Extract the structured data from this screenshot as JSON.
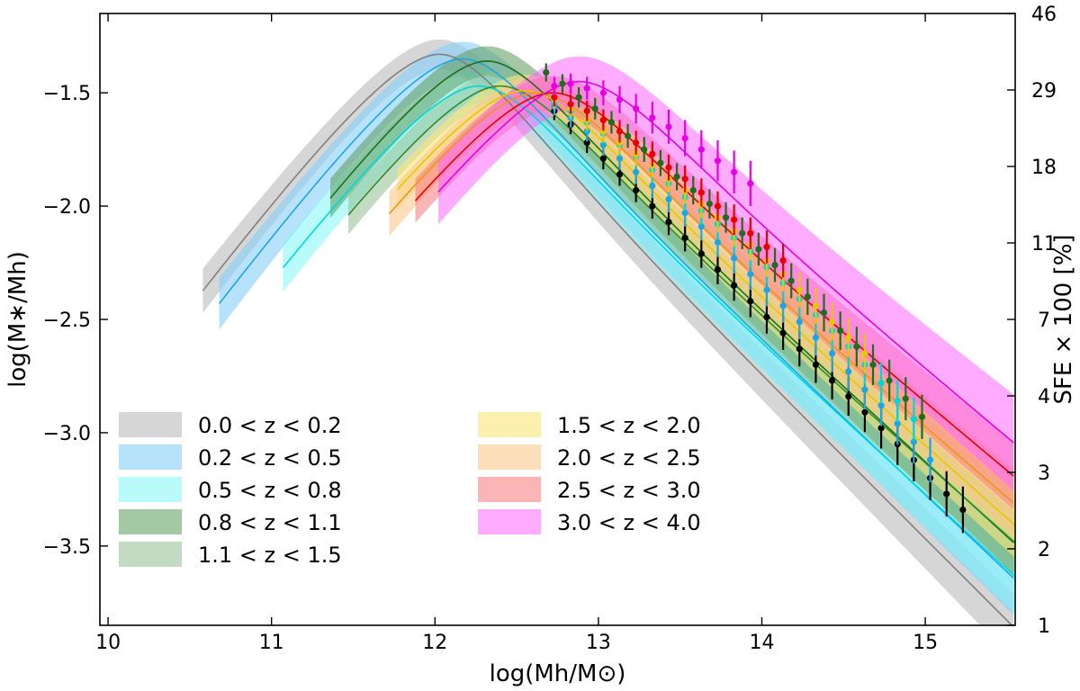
{
  "chart_data": {
    "type": "line",
    "xlabel": "log(Mh/M⊙)",
    "ylabel": "log(M∗/Mh)",
    "y2label": "SFE × 100 [%]",
    "xlim": [
      9.95,
      15.55
    ],
    "ylim": [
      -3.85,
      -1.15
    ],
    "x_ticks": [
      10,
      11,
      12,
      13,
      14,
      15
    ],
    "y_ticks": [
      -3.5,
      -3.0,
      -2.5,
      -2.0,
      -1.5
    ],
    "y2_ticks": [
      "1",
      "2",
      "3",
      "4",
      "7",
      "11",
      "18",
      "29",
      "46"
    ],
    "legend_placement": "lower-left",
    "grid": false,
    "series": [
      {
        "name": "0.0 < z < 0.2",
        "line_color": "#808080",
        "band_color": "#c8c8c8",
        "band_opacity": 0.75,
        "peak_x": 12.03,
        "peak_y": -1.33,
        "slope_low": 1.12,
        "slope_high": -0.72,
        "width": 0.35,
        "x_start": 10.58,
        "x_end": 15.55,
        "band_halfwidth": 0.065,
        "points": [
          [
            12.73,
            -1.58
          ],
          [
            12.83,
            -1.64
          ],
          [
            12.93,
            -1.72
          ],
          [
            13.03,
            -1.79
          ],
          [
            13.13,
            -1.86
          ],
          [
            13.23,
            -1.93
          ],
          [
            13.33,
            -2.0
          ],
          [
            13.43,
            -2.07
          ],
          [
            13.53,
            -2.14
          ],
          [
            13.63,
            -2.21
          ],
          [
            13.73,
            -2.28
          ],
          [
            13.83,
            -2.35
          ],
          [
            13.93,
            -2.42
          ],
          [
            14.03,
            -2.49
          ],
          [
            14.13,
            -2.56
          ],
          [
            14.23,
            -2.63
          ],
          [
            14.33,
            -2.7
          ],
          [
            14.43,
            -2.77
          ],
          [
            14.53,
            -2.84
          ],
          [
            14.63,
            -2.91
          ],
          [
            14.73,
            -2.98
          ],
          [
            14.83,
            -3.05
          ],
          [
            14.93,
            -3.12
          ],
          [
            15.03,
            -3.2
          ],
          [
            15.13,
            -3.27
          ],
          [
            15.23,
            -3.34
          ]
        ],
        "point_color": "#000000"
      },
      {
        "name": "0.2 < z < 0.5",
        "line_color": "#1ea5e6",
        "band_color": "#87cefa",
        "band_opacity": 0.6,
        "peak_x": 12.17,
        "peak_y": -1.35,
        "slope_low": 1.12,
        "slope_high": -0.68,
        "width": 0.35,
        "x_start": 10.68,
        "x_end": 15.55,
        "band_halfwidth": 0.075,
        "points": [
          [
            12.73,
            -1.56
          ],
          [
            12.83,
            -1.61
          ],
          [
            12.93,
            -1.67
          ],
          [
            13.03,
            -1.73
          ],
          [
            13.13,
            -1.79
          ],
          [
            13.23,
            -1.85
          ],
          [
            13.33,
            -1.91
          ],
          [
            13.43,
            -1.97
          ],
          [
            13.53,
            -2.03
          ],
          [
            13.63,
            -2.09
          ],
          [
            13.73,
            -2.16
          ],
          [
            13.83,
            -2.23
          ],
          [
            13.93,
            -2.3
          ],
          [
            14.03,
            -2.37
          ],
          [
            14.13,
            -2.44
          ],
          [
            14.23,
            -2.51
          ],
          [
            14.33,
            -2.58
          ],
          [
            14.43,
            -2.65
          ],
          [
            14.53,
            -2.73
          ],
          [
            14.63,
            -2.81
          ],
          [
            14.73,
            -2.88
          ],
          [
            14.83,
            -2.96
          ],
          [
            14.93,
            -3.04
          ],
          [
            15.03,
            -3.12
          ]
        ],
        "point_color": "#1ea5e6"
      },
      {
        "name": "0.5 < z < 0.8",
        "line_color": "#00d8d8",
        "band_color": "#7ff5f5",
        "band_opacity": 0.55,
        "peak_x": 12.27,
        "peak_y": -1.47,
        "slope_low": 1.1,
        "slope_high": -0.66,
        "width": 0.36,
        "x_start": 11.07,
        "x_end": 15.55,
        "band_halfwidth": 0.075,
        "points": [
          [
            12.73,
            -1.54
          ],
          [
            12.83,
            -1.58
          ],
          [
            12.93,
            -1.63
          ],
          [
            13.03,
            -1.68
          ],
          [
            13.13,
            -1.73
          ],
          [
            13.23,
            -1.78
          ],
          [
            13.33,
            -1.84
          ],
          [
            13.43,
            -1.9
          ],
          [
            13.53,
            -1.96
          ],
          [
            13.63,
            -2.02
          ],
          [
            13.73,
            -2.08
          ],
          [
            13.83,
            -2.14
          ],
          [
            13.93,
            -2.2
          ],
          [
            14.03,
            -2.27
          ],
          [
            14.13,
            -2.34
          ],
          [
            14.23,
            -2.41
          ],
          [
            14.33,
            -2.48
          ],
          [
            14.43,
            -2.55
          ],
          [
            14.53,
            -2.62
          ],
          [
            14.63,
            -2.7
          ],
          [
            14.73,
            -2.78
          ],
          [
            14.83,
            -2.86
          ],
          [
            14.93,
            -2.94
          ]
        ],
        "point_color": "#00d8d8"
      },
      {
        "name": "0.8 < z < 1.1",
        "line_color": "#1e6e1e",
        "band_color": "#5a9a5a",
        "band_opacity": 0.55,
        "peak_x": 12.32,
        "peak_y": -1.36,
        "slope_low": 1.12,
        "slope_high": -0.66,
        "width": 0.35,
        "x_start": 11.36,
        "x_end": 15.55,
        "band_halfwidth": 0.065,
        "points": [
          [
            12.68,
            -1.41
          ],
          [
            12.78,
            -1.46
          ],
          [
            12.88,
            -1.52
          ],
          [
            12.98,
            -1.57
          ],
          [
            13.08,
            -1.63
          ],
          [
            13.18,
            -1.69
          ],
          [
            13.28,
            -1.75
          ],
          [
            13.38,
            -1.81
          ],
          [
            13.48,
            -1.87
          ],
          [
            13.58,
            -1.93
          ],
          [
            13.68,
            -1.99
          ],
          [
            13.78,
            -2.05
          ],
          [
            13.88,
            -2.12
          ],
          [
            13.98,
            -2.19
          ],
          [
            14.08,
            -2.26
          ],
          [
            14.18,
            -2.33
          ],
          [
            14.28,
            -2.4
          ],
          [
            14.38,
            -2.47
          ],
          [
            14.48,
            -2.55
          ],
          [
            14.58,
            -2.62
          ],
          [
            14.68,
            -2.7
          ],
          [
            14.78,
            -2.77
          ],
          [
            14.88,
            -2.85
          ],
          [
            14.98,
            -2.93
          ]
        ],
        "point_color": "#1e6e1e"
      },
      {
        "name": "1.1 < z < 1.5",
        "line_color": "#2e8b2e",
        "band_color": "#8fc08f",
        "band_opacity": 0.55,
        "peak_x": 12.4,
        "peak_y": -1.47,
        "slope_low": 1.1,
        "slope_high": -0.64,
        "width": 0.36,
        "x_start": 11.47,
        "x_end": 15.55,
        "band_halfwidth": 0.065,
        "points": [],
        "point_color": "#2e8b2e"
      },
      {
        "name": "1.5 < z < 2.0",
        "line_color": "#e6c800",
        "band_color": "#fae67a",
        "band_opacity": 0.6,
        "peak_x": 12.55,
        "peak_y": -1.49,
        "slope_low": 1.08,
        "slope_high": -0.64,
        "width": 0.36,
        "x_start": 11.77,
        "x_end": 15.55,
        "band_halfwidth": 0.07,
        "points": [
          [
            12.73,
            -1.53
          ],
          [
            12.83,
            -1.57
          ],
          [
            12.93,
            -1.62
          ],
          [
            13.03,
            -1.67
          ],
          [
            13.13,
            -1.72
          ],
          [
            13.23,
            -1.77
          ],
          [
            13.33,
            -1.82
          ],
          [
            13.43,
            -1.88
          ],
          [
            13.53,
            -1.93
          ],
          [
            13.63,
            -1.99
          ],
          [
            13.73,
            -2.05
          ],
          [
            13.83,
            -2.11
          ],
          [
            13.93,
            -2.17
          ],
          [
            14.03,
            -2.24
          ],
          [
            14.13,
            -2.3
          ],
          [
            14.23,
            -2.37
          ],
          [
            14.33,
            -2.44
          ],
          [
            14.43,
            -2.51
          ],
          [
            14.53,
            -2.58
          ],
          [
            14.63,
            -2.65
          ]
        ],
        "point_color": "#e6c800"
      },
      {
        "name": "2.0 < z < 2.5",
        "line_color": "#e69a1e",
        "band_color": "#fac88a",
        "band_opacity": 0.6,
        "peak_x": 12.62,
        "peak_y": -1.5,
        "slope_low": 1.08,
        "slope_high": -0.62,
        "width": 0.37,
        "x_start": 11.72,
        "x_end": 15.55,
        "band_halfwidth": 0.075,
        "points": [],
        "point_color": "#e69a1e"
      },
      {
        "name": "2.5 < z < 3.0",
        "line_color": "#e60000",
        "band_color": "#f87878",
        "band_opacity": 0.55,
        "peak_x": 12.72,
        "peak_y": -1.5,
        "slope_low": 1.06,
        "slope_high": -0.6,
        "width": 0.38,
        "x_start": 11.88,
        "x_end": 15.55,
        "band_halfwidth": 0.075,
        "points": [
          [
            12.73,
            -1.52
          ],
          [
            12.83,
            -1.55
          ],
          [
            12.93,
            -1.58
          ],
          [
            13.03,
            -1.62
          ],
          [
            13.13,
            -1.67
          ],
          [
            13.23,
            -1.72
          ],
          [
            13.33,
            -1.77
          ],
          [
            13.43,
            -1.83
          ],
          [
            13.53,
            -1.88
          ],
          [
            13.63,
            -1.94
          ],
          [
            13.73,
            -2.0
          ],
          [
            13.83,
            -2.06
          ],
          [
            13.93,
            -2.12
          ],
          [
            14.03,
            -2.18
          ],
          [
            14.13,
            -2.24
          ]
        ],
        "point_color": "#e60000"
      },
      {
        "name": "3.0 < z < 4.0",
        "line_color": "#e600e6",
        "band_color": "#ff66ff",
        "band_opacity": 0.55,
        "peak_x": 12.88,
        "peak_y": -1.45,
        "slope_low": 1.05,
        "slope_high": -0.6,
        "width": 0.4,
        "x_start": 12.02,
        "x_end": 15.55,
        "band_halfwidth": 0.11,
        "points": [
          [
            12.73,
            -1.47
          ],
          [
            12.83,
            -1.46
          ],
          [
            12.93,
            -1.48
          ],
          [
            13.03,
            -1.5
          ],
          [
            13.13,
            -1.53
          ],
          [
            13.23,
            -1.57
          ],
          [
            13.33,
            -1.61
          ],
          [
            13.43,
            -1.65
          ],
          [
            13.53,
            -1.7
          ],
          [
            13.63,
            -1.75
          ],
          [
            13.73,
            -1.8
          ],
          [
            13.83,
            -1.85
          ],
          [
            13.93,
            -1.9
          ]
        ],
        "point_color": "#e600e6"
      }
    ]
  }
}
